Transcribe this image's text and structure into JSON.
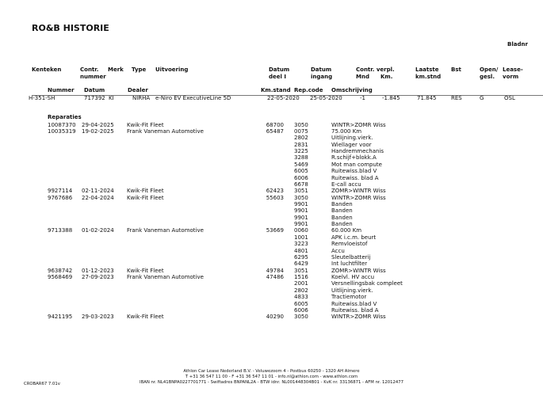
{
  "title": "RO&B HISTORIE",
  "page_label": "Bladnr",
  "header": {
    "kenteken": "Kenteken",
    "contr": "Contr.",
    "nummer_l": "nummer",
    "merk": "Merk",
    "type": "Type",
    "uitvoering": "Uitvoering",
    "datum1": "Datum",
    "deel": "deel I",
    "datum2": "Datum",
    "ingang": "ingang",
    "contr_verpl": "Contr. verpl.",
    "mnd": "Mnd",
    "km": "Km.",
    "laatste": "Laatste",
    "kmstnd": "km.stnd",
    "bst": "Bst",
    "open": "Open/",
    "gesl": "gesl.",
    "lease": "Lease-",
    "vorm": "vorm",
    "nummer": "Nummer",
    "datum": "Datum",
    "dealer": "Dealer",
    "kmstand": "Km.stand",
    "repcode": "Rep.code",
    "omschrijving": "Omschrijving"
  },
  "vehicle": {
    "kenteken": "H-351-SH",
    "contract": "717392",
    "merk": "KI",
    "type": "NIRHA",
    "uitvoering": "e-Niro EV ExecutiveLine 5D",
    "datum_deel1": "22-05-2020",
    "datum_ingang": "25-05-2020",
    "mnd": "-1",
    "km": "-1.845",
    "laatste_km": "71.845",
    "bst": "RES",
    "open_gesl": "G",
    "leasevorm": "OSL"
  },
  "repairs_label": "Reparaties",
  "repairs": [
    {
      "nummer": "10087370",
      "datum": "29-04-2025",
      "dealer": "Kwik-Fit Fleet",
      "km": "68700",
      "items": [
        [
          "3050",
          "WINTR>ZOMR Wiss"
        ]
      ]
    },
    {
      "nummer": "10035319",
      "datum": "19-02-2025",
      "dealer": "Frank Vaneman Automotive",
      "km": "65487",
      "items": [
        [
          "0075",
          "75.000 Km"
        ],
        [
          "2802",
          "Uitlijning.vierk."
        ],
        [
          "2831",
          "Wiellager voor"
        ],
        [
          "3225",
          "Handremmechanis"
        ],
        [
          "3288",
          "R.schijf+blokk.A"
        ],
        [
          "5469",
          "Mot man compute"
        ],
        [
          "6005",
          "Ruitewiss.blad V"
        ],
        [
          "6006",
          "Ruitewiss. blad A"
        ],
        [
          "6678",
          "E-call accu"
        ]
      ]
    },
    {
      "nummer": "9927114",
      "datum": "02-11-2024",
      "dealer": "Kwik-Fit Fleet",
      "km": "62423",
      "items": [
        [
          "3051",
          "ZOMR>WINTR Wiss"
        ]
      ]
    },
    {
      "nummer": "9767686",
      "datum": "22-04-2024",
      "dealer": "Kwik-Fit Fleet",
      "km": "55603",
      "items": [
        [
          "3050",
          "WINTR>ZOMR Wiss"
        ],
        [
          "9901",
          "Banden"
        ],
        [
          "9901",
          "Banden"
        ],
        [
          "9901",
          "Banden"
        ],
        [
          "9901",
          "Banden"
        ]
      ]
    },
    {
      "nummer": "9713388",
      "datum": "01-02-2024",
      "dealer": "Frank Vaneman Automotive",
      "km": "53669",
      "items": [
        [
          "0060",
          "60.000 Km"
        ],
        [
          "1001",
          "APK i.c.m. beurt"
        ],
        [
          "3223",
          "Remvloeistof"
        ],
        [
          "4801",
          "Accu"
        ],
        [
          "6295",
          "Sleutelbatterij"
        ],
        [
          "6429",
          "Int luchtfilter"
        ]
      ]
    },
    {
      "nummer": "9638742",
      "datum": "01-12-2023",
      "dealer": "Kwik-Fit Fleet",
      "km": "49784",
      "items": [
        [
          "3051",
          "ZOMR>WINTR Wiss"
        ]
      ]
    },
    {
      "nummer": "9568469",
      "datum": "27-09-2023",
      "dealer": "Frank Vaneman Automotive",
      "km": "47486",
      "items": [
        [
          "1516",
          "Koelvl. HV accu"
        ],
        [
          "2001",
          "Versnellingsbak compleet"
        ],
        [
          "2802",
          "Uitlijning.vierk."
        ],
        [
          "4833",
          "Tractiemotor"
        ],
        [
          "6005",
          "Ruitewiss.blad V"
        ],
        [
          "6006",
          "Ruitewiss. blad A"
        ]
      ]
    },
    {
      "nummer": "9421195",
      "datum": "29-03-2023",
      "dealer": "Kwik-Fit Fleet",
      "km": "40290",
      "items": [
        [
          "3050",
          "WINTR>ZOMR Wiss"
        ]
      ]
    }
  ],
  "footer": {
    "form_code": "CROBAR67 7.01v",
    "line1": "Athlon Car Lease Nederland B.V. - Veluwezoom 4 - Postbus 60250 - 1320 AH  Almere",
    "line2": "T +31 36 547 11 00 - F +31 36 547 11 01 - info.nl@athlon.com - www.athlon.com",
    "line3": "IBAN nr. NL41BNPA0227701771 - Swiftadres BNPANL2A - BTW idnr. NL001448304B01 - KvK nr. 33136871 - AFM nr. 12012477"
  }
}
